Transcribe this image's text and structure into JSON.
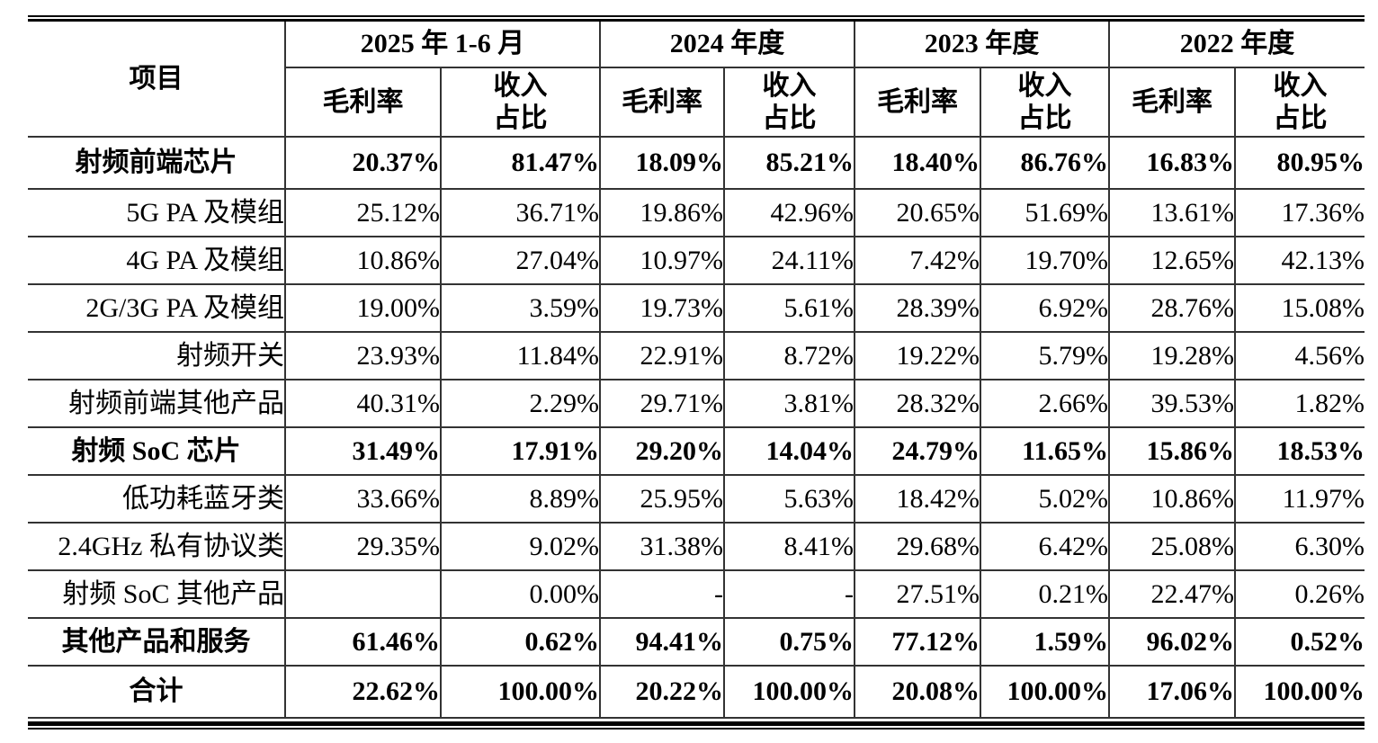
{
  "table": {
    "corner_header": "项目",
    "period_groups": [
      {
        "label": "2025 年 1-6 月"
      },
      {
        "label": "2024 年度"
      },
      {
        "label": "2023 年度"
      },
      {
        "label": "2022 年度"
      }
    ],
    "metric_headers": {
      "gross_margin": "毛利率",
      "revenue_share_line1": "收入",
      "revenue_share_line2": "占比"
    },
    "rows": [
      {
        "label": "射频前端芯片",
        "bold": true,
        "values": [
          "20.37%",
          "81.47%",
          "18.09%",
          "85.21%",
          "18.40%",
          "86.76%",
          "16.83%",
          "80.95%"
        ]
      },
      {
        "label": "5G PA 及模组",
        "bold": false,
        "values": [
          "25.12%",
          "36.71%",
          "19.86%",
          "42.96%",
          "20.65%",
          "51.69%",
          "13.61%",
          "17.36%"
        ]
      },
      {
        "label": "4G PA 及模组",
        "bold": false,
        "values": [
          "10.86%",
          "27.04%",
          "10.97%",
          "24.11%",
          "7.42%",
          "19.70%",
          "12.65%",
          "42.13%"
        ]
      },
      {
        "label": "2G/3G PA 及模组",
        "bold": false,
        "values": [
          "19.00%",
          "3.59%",
          "19.73%",
          "5.61%",
          "28.39%",
          "6.92%",
          "28.76%",
          "15.08%"
        ]
      },
      {
        "label": "射频开关",
        "bold": false,
        "values": [
          "23.93%",
          "11.84%",
          "22.91%",
          "8.72%",
          "19.22%",
          "5.79%",
          "19.28%",
          "4.56%"
        ]
      },
      {
        "label": "射频前端其他产品",
        "bold": false,
        "values": [
          "40.31%",
          "2.29%",
          "29.71%",
          "3.81%",
          "28.32%",
          "2.66%",
          "39.53%",
          "1.82%"
        ]
      },
      {
        "label": "射频 SoC 芯片",
        "bold": true,
        "values": [
          "31.49%",
          "17.91%",
          "29.20%",
          "14.04%",
          "24.79%",
          "11.65%",
          "15.86%",
          "18.53%"
        ]
      },
      {
        "label": "低功耗蓝牙类",
        "bold": false,
        "values": [
          "33.66%",
          "8.89%",
          "25.95%",
          "5.63%",
          "18.42%",
          "5.02%",
          "10.86%",
          "11.97%"
        ]
      },
      {
        "label": "2.4GHz 私有协议类",
        "bold": false,
        "values": [
          "29.35%",
          "9.02%",
          "31.38%",
          "8.41%",
          "29.68%",
          "6.42%",
          "25.08%",
          "6.30%"
        ]
      },
      {
        "label": "射频 SoC 其他产品",
        "bold": false,
        "values": [
          "",
          "0.00%",
          "-",
          "-",
          "27.51%",
          "0.21%",
          "22.47%",
          "0.26%"
        ]
      },
      {
        "label": "其他产品和服务",
        "bold": true,
        "values": [
          "61.46%",
          "0.62%",
          "94.41%",
          "0.75%",
          "77.12%",
          "1.59%",
          "96.02%",
          "0.52%"
        ]
      },
      {
        "label": "合计",
        "bold": true,
        "values": [
          "22.62%",
          "100.00%",
          "20.22%",
          "100.00%",
          "20.08%",
          "100.00%",
          "17.06%",
          "100.00%"
        ]
      }
    ]
  }
}
